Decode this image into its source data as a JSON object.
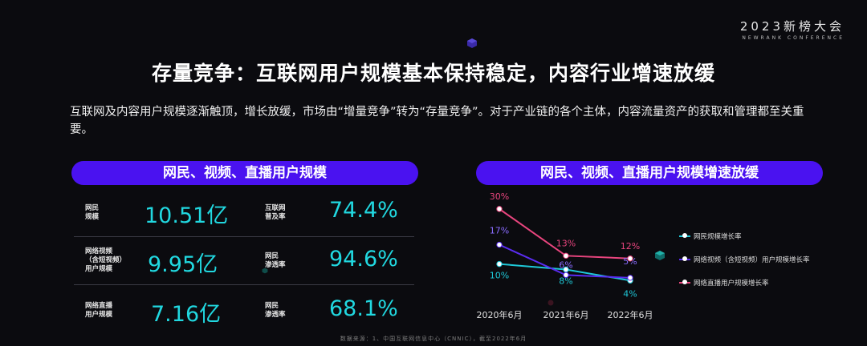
{
  "brand": {
    "main": "2023新榜大会",
    "sub": "NEWRANK CONFERENCE"
  },
  "title": "存量竞争：互联网用户规模基本保持稳定，内容行业增速放缓",
  "description": "互联网及内容用户规模逐渐触顶，增长放缓，市场由“增量竞争”转为“存量竞争”。对于产业链的各个主体，内容流量资产的获取和管理都至关重要。",
  "left_panel": {
    "heading": "网民、视频、直播用户规模",
    "rows": [
      {
        "label_a": "网民\n规模",
        "value_a": "10.51亿",
        "label_b": "互联网\n普及率",
        "value_b": "74.4%"
      },
      {
        "label_a": "网络视频\n（含短视频）\n用户规模",
        "value_a": "9.95亿",
        "label_b": "网民\n渗透率",
        "value_b": "94.6%"
      },
      {
        "label_a": "网络直播\n用户规模",
        "value_a": "7.16亿",
        "label_b": "网民\n渗透率",
        "value_b": "68.1%"
      }
    ]
  },
  "right_panel": {
    "heading": "网民、视频、直播用户规模增速放缓"
  },
  "chart_data": {
    "type": "line",
    "categories": [
      "2020年6月",
      "2021年6月",
      "2022年6月"
    ],
    "series": [
      {
        "name": "网民规模增长率",
        "values": [
          10,
          8,
          4
        ],
        "labels": [
          "10%",
          "8%",
          "4%"
        ],
        "color": "#1ec8d8"
      },
      {
        "name": "网络视频（含短视频）用户规模增长率",
        "values": [
          17,
          6,
          5
        ],
        "labels": [
          "17%",
          "6%",
          "5%"
        ],
        "color": "#5a2cf0"
      },
      {
        "name": "网络直播用户规模增长率",
        "values": [
          30,
          13,
          12
        ],
        "labels": [
          "30%",
          "13%",
          "12%"
        ],
        "color": "#e8457e"
      }
    ],
    "ylim": [
      0,
      32
    ],
    "grid": false,
    "legend": "right"
  },
  "source": "数据来源：1、中国互联网信息中心（CNNIC），截至2022年6月"
}
